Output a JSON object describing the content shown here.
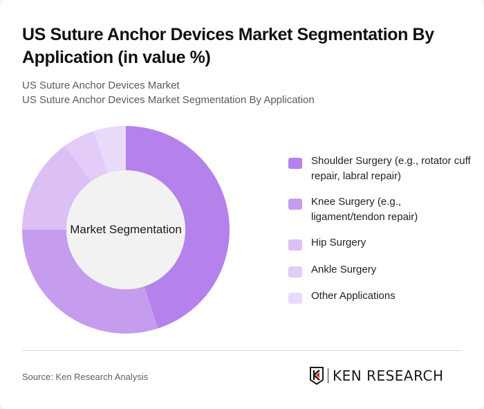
{
  "header": {
    "title": "US Suture Anchor Devices Market Segmentation By Application (in value %)",
    "subtitle_line1": "US Suture Anchor Devices Market",
    "subtitle_line2": "US Suture Anchor Devices Market Segmentation By Application"
  },
  "chart": {
    "center_label": "Market Segmentation"
  },
  "legend": {
    "items": [
      {
        "label": "Shoulder Surgery (e.g., rotator cuff repair, labral repair)",
        "color": "#b482ea"
      },
      {
        "label": "Knee Surgery (e.g., ligament/tendon repair)",
        "color": "#c69cee"
      },
      {
        "label": "Hip Surgery",
        "color": "#dbbff5"
      },
      {
        "label": "Ankle Surgery",
        "color": "#e3ccf7"
      },
      {
        "label": "Other Applications",
        "color": "#e9dafa"
      }
    ]
  },
  "footer": {
    "source": "Source: Ken Research Analysis",
    "logo_text": "KEN RESEARCH",
    "logo_icon": "ken-research-shield-k-icon"
  },
  "chart_data": {
    "type": "pie",
    "variant": "donut",
    "title": "US Suture Anchor Devices Market Segmentation By Application (in value %)",
    "center_label": "Market Segmentation",
    "categories": [
      "Shoulder Surgery (e.g., rotator cuff repair, labral repair)",
      "Knee Surgery (e.g., ligament/tendon repair)",
      "Hip Surgery",
      "Ankle Surgery",
      "Other Applications"
    ],
    "values": [
      45,
      30,
      15,
      5,
      5
    ],
    "colors": [
      "#b482ea",
      "#c69cee",
      "#dbbff5",
      "#e3ccf7",
      "#e9dafa"
    ],
    "legend_position": "right",
    "unit": "%"
  }
}
